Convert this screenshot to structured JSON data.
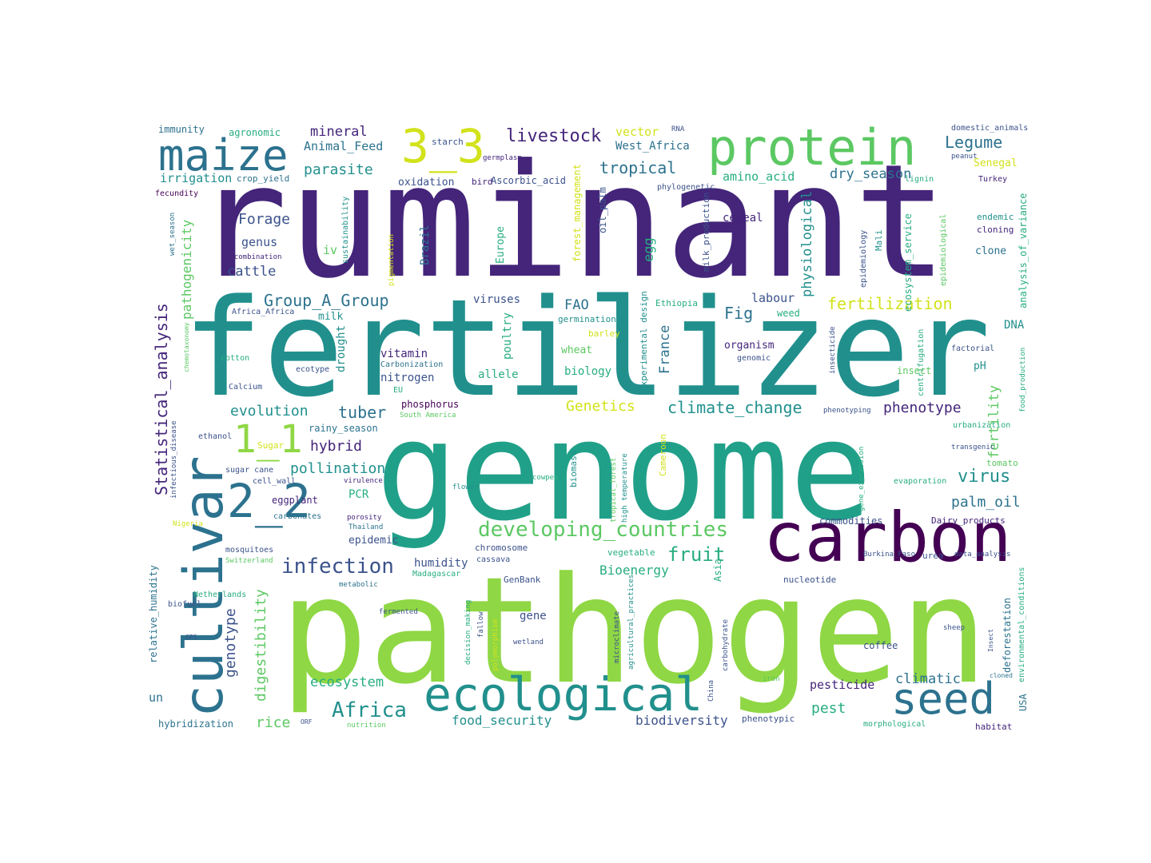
{
  "word_cloud": {
    "colors": {
      "c1": "#44257a",
      "c2": "#3b528b",
      "c3": "#2c728e",
      "c4": "#21908d",
      "c5": "#27ad81",
      "c6": "#5cc863",
      "c7": "#8fd744",
      "c8": "#d2e21b",
      "c9": "#440154"
    },
    "words": [
      "ruminant",
      "fertilizer",
      "genome",
      "pathogen",
      "carbon",
      "protein",
      "maize",
      "3_3",
      "cultivar",
      "ecological",
      "seed",
      "1_1",
      "2_2",
      "developing_countries",
      "infection",
      "Africa",
      "livestock",
      "Forage",
      "Group_A_Group",
      "fertilization",
      "climate_change",
      "Genetics",
      "phenotype",
      "evolution",
      "tuber",
      "hybrid",
      "pollination",
      "virus",
      "palm_oil",
      "fruit",
      "Bioenergy",
      "ecosystem",
      "food_security",
      "biodiversity",
      "pesticide",
      "pest",
      "climatic",
      "rice",
      "genotype",
      "digestibility",
      "Statistical_analysis",
      "pathogenicity",
      "tropical",
      "Legume",
      "dry_season",
      "amino_acid",
      "parasite",
      "Animal_Feed",
      "mineral",
      "irrigation",
      "immunity",
      "agronomic",
      "vector",
      "West_Africa",
      "Senegal",
      "genus",
      "cattle",
      "iv",
      "FAO",
      "Fig",
      "labour",
      "viruses",
      "milk",
      "vitamin",
      "nitrogen",
      "allele",
      "biology",
      "organism",
      "pH",
      "DNA",
      "France",
      "egg",
      "physiological",
      "cereal",
      "oxidation",
      "Ascorbic_acid",
      "Brazil",
      "Europe",
      "forest_management",
      "oil_palm",
      "fertility",
      "clone",
      "analysis_of_variance",
      "domestic_animals",
      "Turkey",
      "endemic",
      "cloning",
      "lignin",
      "phylogenetic",
      "RNA",
      "starch",
      "germplasm",
      "bird",
      "crop_yield",
      "fecundity",
      "wet_season",
      "recombination",
      "sustainability",
      "pigmentation",
      "milk_production",
      "Mali",
      "epidemiology",
      "ecosystem_service",
      "epidemiological",
      "Ethiopia",
      "germination",
      "barley",
      "wheat",
      "poultry",
      "drought",
      "ecotype",
      "Calcium",
      "cotton",
      "chemotaxonomy",
      "Carbonization",
      "EU",
      "phosphorus",
      "South America",
      "rainy_season",
      "ethanol",
      "Sugar",
      "sugar cane",
      "cell_wall",
      "virulence",
      "eggplant",
      "carbonates",
      "porosity",
      "Thailand",
      "PCR",
      "Nigeria",
      "mosquitoes",
      "Switzerland",
      "epidemic",
      "humidity",
      "chromosome",
      "cassava",
      "GenBank",
      "Madagascar",
      "metabolic",
      "biofuel",
      "Netherlands",
      "relative_humidity",
      "GPS",
      "un",
      "hybridization",
      "ORF",
      "nutrition",
      "fermented",
      "decision_making",
      "fallow",
      "polymorphism",
      "wetland",
      "gene",
      "microclimate",
      "agricultural_practices",
      "carbohydrate",
      "China",
      "iron",
      "phenotypic",
      "morphological",
      "habitat",
      "USA",
      "cloned",
      "Insect",
      "environmental_conditions",
      "deforestation",
      "sheep",
      "data_analysis",
      "urea",
      "Burkina_Faso",
      "nucleotide",
      "Asia",
      "vegetable",
      "coffee",
      "commodities",
      "Dairy_products",
      "tomato",
      "evaporation",
      "gene_expression",
      "transgenic",
      "urbanization",
      "food_production",
      "phenotyping",
      "centrifugation",
      "insecticide",
      "factorial",
      "genomic",
      "weed",
      "experimental design",
      "Cameroon",
      "tropical_forest",
      "high temperature",
      "biomass",
      "cowpea",
      "flower",
      "infectious_disease",
      "Africa_Africa",
      "peanut",
      "insect",
      "weeds"
    ]
  }
}
